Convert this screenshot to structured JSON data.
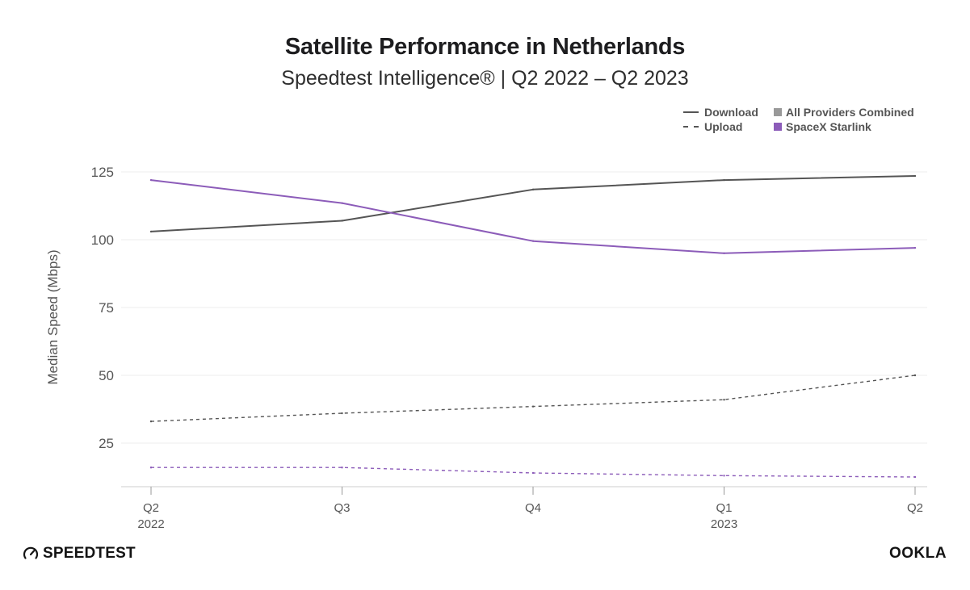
{
  "header": {
    "title": "Satellite Performance in Netherlands",
    "subtitle": "Speedtest Intelligence® | Q2 2022 – Q2 2023"
  },
  "legend": {
    "download": "Download",
    "upload": "Upload",
    "all_providers": "All Providers Combined",
    "starlink": "SpaceX Starlink"
  },
  "colors": {
    "all_providers": "#555555",
    "starlink": "#8c5cb9",
    "all_providers_swatch": "#999999",
    "grid": "#eeeeee",
    "axis": "#cccccc"
  },
  "chart_data": {
    "type": "line",
    "title": "Satellite Performance in Netherlands",
    "subtitle": "Speedtest Intelligence® | Q2 2022 – Q2 2023",
    "ylabel": "Median Speed (Mbps)",
    "xlabel": "",
    "categories": [
      "Q2 2022",
      "Q3 2022",
      "Q4 2022",
      "Q1 2023",
      "Q2 2023"
    ],
    "x_tick_labels": [
      "Q2",
      "Q3",
      "Q4",
      "Q1",
      "Q2"
    ],
    "x_year_labels": [
      "2022",
      "",
      "",
      "2023",
      ""
    ],
    "y_ticks": [
      25,
      50,
      75,
      100,
      125
    ],
    "ylim": [
      12,
      125
    ],
    "grid": true,
    "legend_position": "top-right",
    "series": [
      {
        "name": "All Providers Combined – Download",
        "provider": "All Providers Combined",
        "metric": "Download",
        "style": "solid",
        "values": [
          103,
          107,
          118.5,
          122,
          123.5
        ]
      },
      {
        "name": "SpaceX Starlink – Download",
        "provider": "SpaceX Starlink",
        "metric": "Download",
        "style": "solid",
        "values": [
          122,
          113.5,
          99.5,
          95,
          97
        ]
      },
      {
        "name": "All Providers Combined – Upload",
        "provider": "All Providers Combined",
        "metric": "Upload",
        "style": "dashed",
        "values": [
          33,
          36,
          38.5,
          41,
          50
        ]
      },
      {
        "name": "SpaceX Starlink – Upload",
        "provider": "SpaceX Starlink",
        "metric": "Upload",
        "style": "dashed",
        "values": [
          16,
          16,
          14,
          13,
          12.5
        ]
      }
    ]
  },
  "branding": {
    "left": "SPEEDTEST",
    "right": "OOKLA"
  }
}
